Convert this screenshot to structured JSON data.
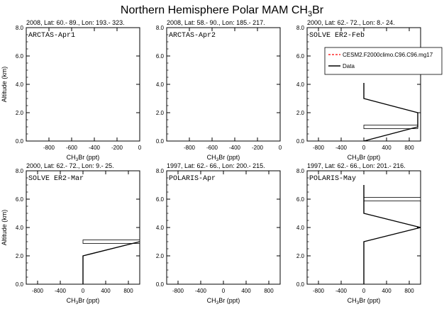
{
  "figure": {
    "title": "Northern Hemisphere Polar MAM CH",
    "title_sub": "3",
    "title_tail": "Br"
  },
  "chart_data": [
    {
      "type": "line",
      "panel_label": "ARCTAS-Apr1",
      "header": "2008, Lat:  60.- 89., Lon: 193.- 323.",
      "xlabel": "CH3Br (ppt)",
      "ylabel": "Altitude (km)",
      "xlim": [
        -1000,
        0
      ],
      "ylim": [
        0,
        8
      ],
      "xticks": [
        -800,
        -600,
        -400,
        -200,
        0
      ],
      "yticks": [
        0.0,
        2.0,
        4.0,
        6.0,
        8.0
      ],
      "series": [],
      "bars": []
    },
    {
      "type": "line",
      "panel_label": "ARCTAS-Apr2",
      "header": "2008, Lat:  58.- 90., Lon: 185.- 217.",
      "xlabel": "CH3Br (ppt)",
      "ylabel": "",
      "xlim": [
        -1000,
        0
      ],
      "ylim": [
        0,
        8
      ],
      "xticks": [
        -800,
        -600,
        -400,
        -200,
        0
      ],
      "yticks": [
        0.0,
        2.0,
        4.0,
        6.0,
        8.0
      ],
      "series": [],
      "bars": []
    },
    {
      "type": "line",
      "panel_label": "SOLVE ER2-Feb",
      "header": "2000, Lat:  62.- 72., Lon:  8.- 24.",
      "xlabel": "CH3Br (ppt)",
      "ylabel": "",
      "xlim": [
        -1000,
        1000
      ],
      "ylim": [
        0,
        8
      ],
      "xticks": [
        -800,
        -400,
        0,
        400,
        800
      ],
      "yticks": [
        0.0,
        2.0,
        4.0,
        6.0,
        8.0
      ],
      "legend": [
        "CESM2.F2000climo.C96.C96.mg17",
        "Data"
      ],
      "series": [
        {
          "name": "Data",
          "x": [
            0,
            0,
            950,
            950,
            0,
            0
          ],
          "y": [
            0,
            0,
            1,
            2,
            3,
            4.1
          ]
        }
      ],
      "bars": [
        {
          "x0": 0,
          "x1": 950,
          "y": 1.0
        }
      ]
    },
    {
      "type": "line",
      "panel_label": "SOLVE ER2-Mar",
      "header": "2000, Lat:  62.- 72., Lon:  9.- 25.",
      "xlabel": "CH3Br (ppt)",
      "ylabel": "Altitude (km)",
      "xlim": [
        -1000,
        1000
      ],
      "ylim": [
        0,
        8
      ],
      "xticks": [
        -800,
        -400,
        0,
        400,
        800
      ],
      "yticks": [
        0.0,
        2.0,
        4.0,
        6.0,
        8.0
      ],
      "series": [
        {
          "name": "Data",
          "x": [
            0,
            0,
            0,
            1000
          ],
          "y": [
            0,
            1,
            2,
            3
          ]
        }
      ],
      "bars": [
        {
          "x0": 0,
          "x1": 1000,
          "y": 3.0
        }
      ]
    },
    {
      "type": "line",
      "panel_label": "POLARIS-Apr",
      "header": "1997, Lat:  62.- 66., Lon: 200.- 215.",
      "xlabel": "CH3Br (ppt)",
      "ylabel": "",
      "xlim": [
        -1000,
        1000
      ],
      "ylim": [
        0,
        8
      ],
      "xticks": [
        -800,
        -400,
        0,
        400,
        800
      ],
      "yticks": [
        0.0,
        2.0,
        4.0,
        6.0,
        8.0
      ],
      "series": [],
      "bars": []
    },
    {
      "type": "line",
      "panel_label": "POLARIS-May",
      "header": "1997, Lat:  62.- 66., Lon: 201.- 216.",
      "xlabel": "CH3Br (ppt)",
      "ylabel": "",
      "xlim": [
        -1000,
        1000
      ],
      "ylim": [
        0,
        8
      ],
      "xticks": [
        -800,
        -400,
        0,
        400,
        800
      ],
      "yticks": [
        0.0,
        2.0,
        4.0,
        6.0,
        8.0
      ],
      "series": [
        {
          "name": "Data",
          "x": [
            0,
            0,
            0,
            1000,
            0,
            0,
            0
          ],
          "y": [
            0,
            2,
            3,
            4,
            5,
            6,
            7
          ]
        }
      ],
      "bars": [
        {
          "x0": 0,
          "x1": 1000,
          "y": 6.0
        }
      ]
    }
  ],
  "colors": {
    "model_line": "#ff0000",
    "data_line": "#000000",
    "axis": "#000000"
  }
}
